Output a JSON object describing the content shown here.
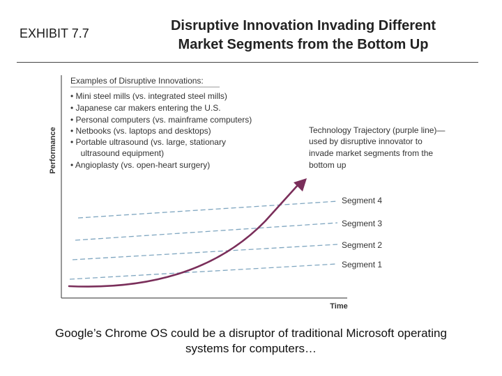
{
  "header": {
    "exhibit_label": "EXHIBIT 7.7",
    "title_line1": "Disruptive Innovation Invading Different",
    "title_line2": "Market Segments from the Bottom Up"
  },
  "diagram": {
    "y_axis_label": "Performance",
    "x_axis_label": "Time",
    "examples_heading": "Examples of Disruptive Innovations:",
    "examples": [
      "• Mini steel mills (vs. integrated steel mills)",
      "• Japanese car makers entering the U.S.",
      "• Personal computers (vs. mainframe computers)",
      "• Netbooks (vs. laptops and desktops)",
      "• Portable ultrasound (vs. large, stationary",
      "  ultrasound equipment)",
      "• Angioplasty (vs. open-heart surgery)"
    ],
    "trajectory_note": [
      "Technology Trajectory (purple line)—",
      "used by disruptive innovator to",
      "invade market segments from the",
      "bottom up"
    ],
    "segments": [
      "Segment 4",
      "Segment 3",
      "Segment 2",
      "Segment 1"
    ],
    "colors": {
      "trajectory": "#7a2e5a",
      "segment_lines": "#7fa6c0",
      "axis": "#555555"
    }
  },
  "caption": {
    "line1": "Google’s Chrome OS could be a disruptor of traditional Microsoft operating",
    "line2": "systems for computers…"
  }
}
